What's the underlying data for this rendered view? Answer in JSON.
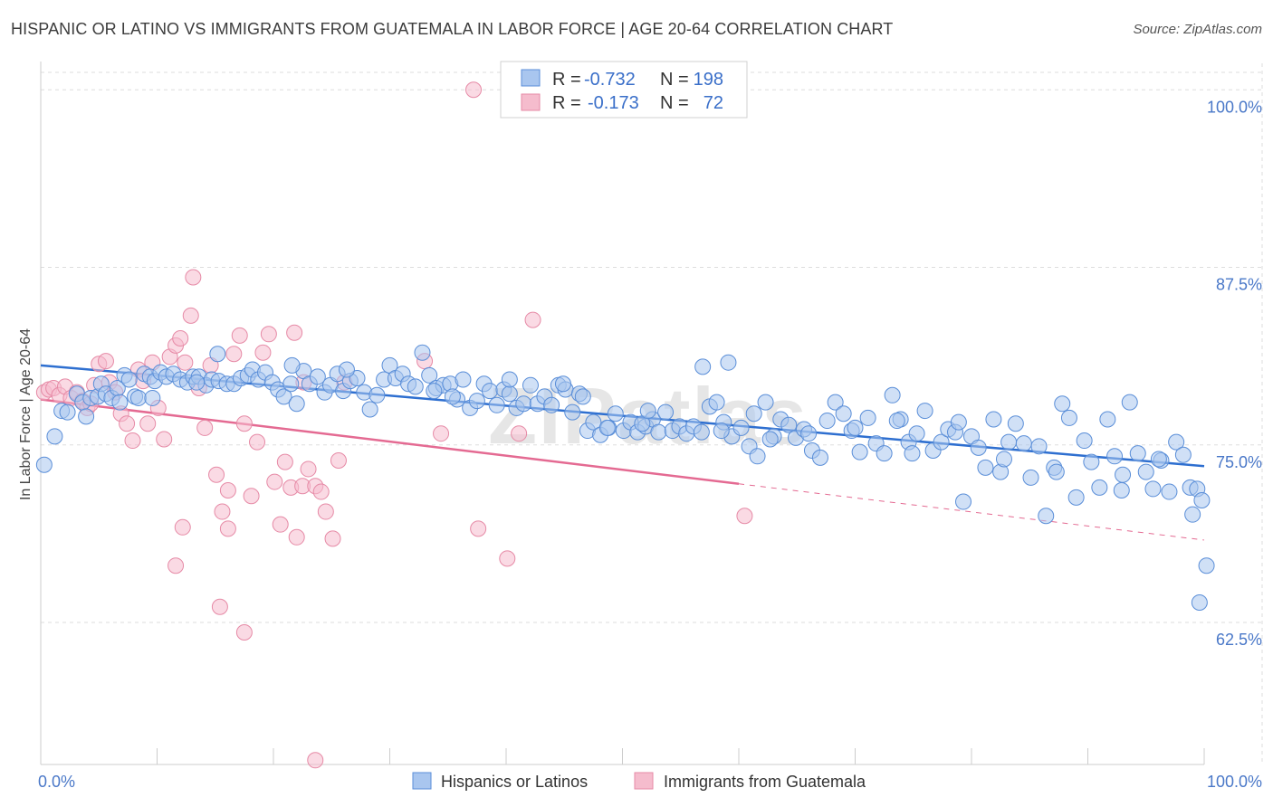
{
  "header": {
    "title": "HISPANIC OR LATINO VS IMMIGRANTS FROM GUATEMALA IN LABOR FORCE | AGE 20-64 CORRELATION CHART",
    "source": "Source: ZipAtlas.com"
  },
  "watermark": "ZIPatlas",
  "colors": {
    "blue_fill": "#a9c6ef",
    "blue_stroke": "#5a8ed8",
    "blue_line": "#2e6fd0",
    "pink_fill": "#f5bccd",
    "pink_stroke": "#e68aa6",
    "pink_line": "#e46a92",
    "tick_text": "#4a78c8",
    "grid": "#dddddd"
  },
  "stats_box": {
    "rows": [
      {
        "r_label": "R =",
        "r_value": "-0.732",
        "n_label": "N =",
        "n_value": "198",
        "series": "blue"
      },
      {
        "r_label": "R =",
        "r_value": "-0.173",
        "n_label": "N =",
        "n_value": "72",
        "series": "pink"
      }
    ]
  },
  "chart_data": {
    "type": "scatter",
    "xlabel": "",
    "ylabel": "In Labor Force | Age 20-64",
    "xlim": [
      0,
      100
    ],
    "ylim": [
      52.5,
      102.5
    ],
    "x_tick_labels": [
      "0.0%",
      "100.0%"
    ],
    "y_ticks": [
      100.0,
      87.5,
      75.0,
      62.5
    ],
    "y_tick_labels": [
      "100.0%",
      "87.5%",
      "75.0%",
      "62.5%"
    ],
    "grid": true,
    "legend_position": "bottom-center",
    "series": [
      {
        "name": "Hispanics or Latinos",
        "color": "blue",
        "trend": {
          "x": [
            0,
            100
          ],
          "y": [
            80.6,
            73.5
          ],
          "dashed_from": null
        },
        "points": [
          [
            0.3,
            73.6
          ],
          [
            1.2,
            75.6
          ],
          [
            1.8,
            77.4
          ],
          [
            2.3,
            77.3
          ],
          [
            3.1,
            78.6
          ],
          [
            3.6,
            78.0
          ],
          [
            4.3,
            78.3
          ],
          [
            4.9,
            78.4
          ],
          [
            5.2,
            79.3
          ],
          [
            5.6,
            78.6
          ],
          [
            6.1,
            78.3
          ],
          [
            6.6,
            79.0
          ],
          [
            7.2,
            79.9
          ],
          [
            7.6,
            79.6
          ],
          [
            8.1,
            78.4
          ],
          [
            8.4,
            78.3
          ],
          [
            8.9,
            80.0
          ],
          [
            9.4,
            79.8
          ],
          [
            9.8,
            79.5
          ],
          [
            10.3,
            80.1
          ],
          [
            10.8,
            79.8
          ],
          [
            11.4,
            80.0
          ],
          [
            12.0,
            79.6
          ],
          [
            12.6,
            79.4
          ],
          [
            13.1,
            79.8
          ],
          [
            13.6,
            79.8
          ],
          [
            14.2,
            79.2
          ],
          [
            14.7,
            79.6
          ],
          [
            15.3,
            79.5
          ],
          [
            16.0,
            79.3
          ],
          [
            16.6,
            79.3
          ],
          [
            17.2,
            79.7
          ],
          [
            17.8,
            79.9
          ],
          [
            18.2,
            80.3
          ],
          [
            18.7,
            79.6
          ],
          [
            19.3,
            80.1
          ],
          [
            19.9,
            79.4
          ],
          [
            20.4,
            78.9
          ],
          [
            20.9,
            78.4
          ],
          [
            21.5,
            79.3
          ],
          [
            22.0,
            77.9
          ],
          [
            22.6,
            80.2
          ],
          [
            23.1,
            79.3
          ],
          [
            23.8,
            79.8
          ],
          [
            24.4,
            78.7
          ],
          [
            24.9,
            79.2
          ],
          [
            25.5,
            80.0
          ],
          [
            26.0,
            78.8
          ],
          [
            26.6,
            79.5
          ],
          [
            27.2,
            79.7
          ],
          [
            27.8,
            78.7
          ],
          [
            28.3,
            77.5
          ],
          [
            28.9,
            78.5
          ],
          [
            29.5,
            79.6
          ],
          [
            30.0,
            80.6
          ],
          [
            30.5,
            79.7
          ],
          [
            31.1,
            80.0
          ],
          [
            31.6,
            79.3
          ],
          [
            32.2,
            79.1
          ],
          [
            32.8,
            81.5
          ],
          [
            33.4,
            79.9
          ],
          [
            34.0,
            79.0
          ],
          [
            34.6,
            79.2
          ],
          [
            35.2,
            79.3
          ],
          [
            35.8,
            78.2
          ],
          [
            36.3,
            79.6
          ],
          [
            36.9,
            77.6
          ],
          [
            37.5,
            78.1
          ],
          [
            38.1,
            79.3
          ],
          [
            38.6,
            78.8
          ],
          [
            39.2,
            77.8
          ],
          [
            39.8,
            78.9
          ],
          [
            40.3,
            78.6
          ],
          [
            40.9,
            77.6
          ],
          [
            41.5,
            77.9
          ],
          [
            42.1,
            79.2
          ],
          [
            42.7,
            77.9
          ],
          [
            43.3,
            78.4
          ],
          [
            43.9,
            77.8
          ],
          [
            44.5,
            79.2
          ],
          [
            45.1,
            78.9
          ],
          [
            45.7,
            77.3
          ],
          [
            46.3,
            78.6
          ],
          [
            47.0,
            76.0
          ],
          [
            47.5,
            76.6
          ],
          [
            48.1,
            75.7
          ],
          [
            48.8,
            76.2
          ],
          [
            49.4,
            77.2
          ],
          [
            50.1,
            76.0
          ],
          [
            50.7,
            76.6
          ],
          [
            51.3,
            75.9
          ],
          [
            52.0,
            76.3
          ],
          [
            52.6,
            76.8
          ],
          [
            53.1,
            75.9
          ],
          [
            53.7,
            77.3
          ],
          [
            54.3,
            76.0
          ],
          [
            54.9,
            76.3
          ],
          [
            55.5,
            75.8
          ],
          [
            56.1,
            76.3
          ],
          [
            56.8,
            75.9
          ],
          [
            57.5,
            77.7
          ],
          [
            58.1,
            78.0
          ],
          [
            58.7,
            76.6
          ],
          [
            59.4,
            75.6
          ],
          [
            60.2,
            76.2
          ],
          [
            60.9,
            74.9
          ],
          [
            61.6,
            74.2
          ],
          [
            62.3,
            78.0
          ],
          [
            63.0,
            75.6
          ],
          [
            63.6,
            76.8
          ],
          [
            64.3,
            76.4
          ],
          [
            64.9,
            75.5
          ],
          [
            65.6,
            76.1
          ],
          [
            66.3,
            74.6
          ],
          [
            67.0,
            74.1
          ],
          [
            67.6,
            76.7
          ],
          [
            68.3,
            78.0
          ],
          [
            69.0,
            77.2
          ],
          [
            69.7,
            76.0
          ],
          [
            70.4,
            74.5
          ],
          [
            71.1,
            76.9
          ],
          [
            71.8,
            75.1
          ],
          [
            72.5,
            74.4
          ],
          [
            73.2,
            78.5
          ],
          [
            73.9,
            76.8
          ],
          [
            74.6,
            75.2
          ],
          [
            75.3,
            75.8
          ],
          [
            76.0,
            77.4
          ],
          [
            76.7,
            74.6
          ],
          [
            77.4,
            75.2
          ],
          [
            78.0,
            76.1
          ],
          [
            78.6,
            75.9
          ],
          [
            79.3,
            71.0
          ],
          [
            80.0,
            75.6
          ],
          [
            80.6,
            74.8
          ],
          [
            81.2,
            73.4
          ],
          [
            81.9,
            76.8
          ],
          [
            82.5,
            73.1
          ],
          [
            83.2,
            75.2
          ],
          [
            83.8,
            76.5
          ],
          [
            84.5,
            75.1
          ],
          [
            85.1,
            72.7
          ],
          [
            85.8,
            74.9
          ],
          [
            86.4,
            70.0
          ],
          [
            87.1,
            73.4
          ],
          [
            87.8,
            77.9
          ],
          [
            88.4,
            76.9
          ],
          [
            89.0,
            71.3
          ],
          [
            89.7,
            75.3
          ],
          [
            90.3,
            73.8
          ],
          [
            91.0,
            72.0
          ],
          [
            91.7,
            76.8
          ],
          [
            92.3,
            74.2
          ],
          [
            93.0,
            72.9
          ],
          [
            93.6,
            78.0
          ],
          [
            94.3,
            74.4
          ],
          [
            95.0,
            73.1
          ],
          [
            95.6,
            71.9
          ],
          [
            96.3,
            73.9
          ],
          [
            97.0,
            71.7
          ],
          [
            97.6,
            75.2
          ],
          [
            98.2,
            74.3
          ],
          [
            98.8,
            72.0
          ],
          [
            99.4,
            71.9
          ],
          [
            99.8,
            71.1
          ],
          [
            99.0,
            70.1
          ],
          [
            100.2,
            66.5
          ],
          [
            99.6,
            63.9
          ],
          [
            51.7,
            76.5
          ],
          [
            56.9,
            80.5
          ],
          [
            59.1,
            80.8
          ],
          [
            40.3,
            79.6
          ],
          [
            33.8,
            78.8
          ],
          [
            21.6,
            80.6
          ],
          [
            15.2,
            81.4
          ],
          [
            9.6,
            78.3
          ],
          [
            6.8,
            78.0
          ],
          [
            3.9,
            77.0
          ],
          [
            44.9,
            79.3
          ],
          [
            48.7,
            76.2
          ],
          [
            52.2,
            77.4
          ],
          [
            58.5,
            76.0
          ],
          [
            62.7,
            75.4
          ],
          [
            66.0,
            75.8
          ],
          [
            70.0,
            76.2
          ],
          [
            73.6,
            76.7
          ],
          [
            78.9,
            76.6
          ],
          [
            82.8,
            74.0
          ],
          [
            87.3,
            73.1
          ],
          [
            92.9,
            71.8
          ],
          [
            96.1,
            74.0
          ],
          [
            13.4,
            79.4
          ],
          [
            26.3,
            80.3
          ],
          [
            35.4,
            78.4
          ],
          [
            46.6,
            78.4
          ],
          [
            61.3,
            77.2
          ],
          [
            74.9,
            74.4
          ]
        ]
      },
      {
        "name": "Immigrants from Guatemala",
        "color": "pink",
        "trend": {
          "x": [
            0,
            100
          ],
          "y": [
            78.2,
            68.3
          ],
          "dashed_from": 60
        },
        "points": [
          [
            0.3,
            78.7
          ],
          [
            0.7,
            78.9
          ],
          [
            1.1,
            79.0
          ],
          [
            1.6,
            78.5
          ],
          [
            2.1,
            79.1
          ],
          [
            2.6,
            78.3
          ],
          [
            3.1,
            78.7
          ],
          [
            3.6,
            78.1
          ],
          [
            4.0,
            77.6
          ],
          [
            4.3,
            77.9
          ],
          [
            4.6,
            79.2
          ],
          [
            5.0,
            80.7
          ],
          [
            5.6,
            80.9
          ],
          [
            5.9,
            79.4
          ],
          [
            6.4,
            78.7
          ],
          [
            6.9,
            77.2
          ],
          [
            7.4,
            76.5
          ],
          [
            7.9,
            75.3
          ],
          [
            8.4,
            80.3
          ],
          [
            8.8,
            79.5
          ],
          [
            9.2,
            76.5
          ],
          [
            9.6,
            80.8
          ],
          [
            10.1,
            77.6
          ],
          [
            10.6,
            75.4
          ],
          [
            11.1,
            81.2
          ],
          [
            11.6,
            82.0
          ],
          [
            12.0,
            82.5
          ],
          [
            12.4,
            80.8
          ],
          [
            12.9,
            84.1
          ],
          [
            13.1,
            86.8
          ],
          [
            13.6,
            79.0
          ],
          [
            14.1,
            76.2
          ],
          [
            14.6,
            80.6
          ],
          [
            15.1,
            72.9
          ],
          [
            15.6,
            70.3
          ],
          [
            16.1,
            71.8
          ],
          [
            16.6,
            81.4
          ],
          [
            17.1,
            82.7
          ],
          [
            17.5,
            76.5
          ],
          [
            18.1,
            71.4
          ],
          [
            18.6,
            75.2
          ],
          [
            19.1,
            81.5
          ],
          [
            19.6,
            82.8
          ],
          [
            20.1,
            72.4
          ],
          [
            20.6,
            69.4
          ],
          [
            21.0,
            73.8
          ],
          [
            21.5,
            72.0
          ],
          [
            22.0,
            68.5
          ],
          [
            22.5,
            72.1
          ],
          [
            23.0,
            73.3
          ],
          [
            23.6,
            72.1
          ],
          [
            24.1,
            71.7
          ],
          [
            24.5,
            70.3
          ],
          [
            25.1,
            68.4
          ],
          [
            25.6,
            73.9
          ],
          [
            26.1,
            79.4
          ],
          [
            16.1,
            69.1
          ],
          [
            12.2,
            69.2
          ],
          [
            11.6,
            66.5
          ],
          [
            15.4,
            63.6
          ],
          [
            17.5,
            61.8
          ],
          [
            23.6,
            52.8
          ],
          [
            37.2,
            100.0
          ],
          [
            34.4,
            75.8
          ],
          [
            37.6,
            69.1
          ],
          [
            40.1,
            67.0
          ],
          [
            41.1,
            75.8
          ],
          [
            42.3,
            83.8
          ],
          [
            60.5,
            70.0
          ],
          [
            33.0,
            80.9
          ],
          [
            21.8,
            82.9
          ],
          [
            22.6,
            79.4
          ]
        ]
      }
    ]
  },
  "legend": {
    "items": [
      {
        "label": "Hispanics or Latinos",
        "series": "blue"
      },
      {
        "label": "Immigrants from Guatemala",
        "series": "pink"
      }
    ]
  }
}
